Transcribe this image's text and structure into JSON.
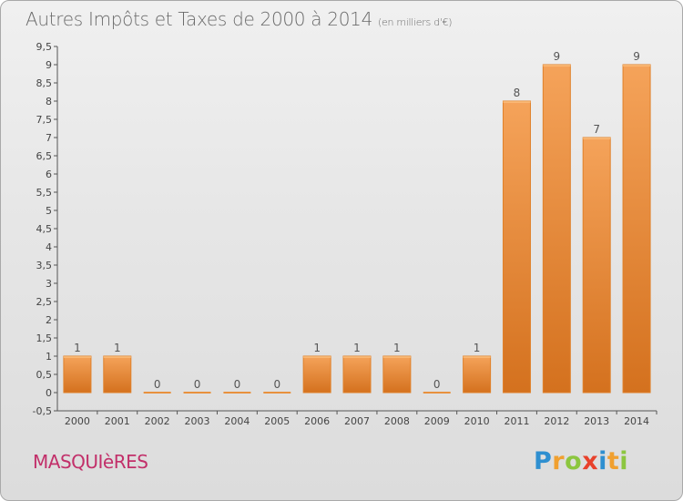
{
  "chart_data": {
    "type": "bar",
    "title": "Autres Impôts et Taxes de 2000 à 2014",
    "subtitle": "(en milliers d'€)",
    "categories": [
      "2000",
      "2001",
      "2002",
      "2003",
      "2004",
      "2005",
      "2006",
      "2007",
      "2008",
      "2009",
      "2010",
      "2011",
      "2012",
      "2013",
      "2014"
    ],
    "values": [
      1,
      1,
      0,
      0,
      0,
      0,
      1,
      1,
      1,
      0,
      1,
      8,
      9,
      7,
      9
    ],
    "data_labels": [
      "1",
      "1",
      "0",
      "0",
      "0",
      "0",
      "1",
      "1",
      "1",
      "0",
      "1",
      "8",
      "9",
      "7",
      "9"
    ],
    "ylim": [
      -0.5,
      9.5
    ],
    "yticks": [
      -0.5,
      0,
      0.5,
      1,
      1.5,
      2,
      2.5,
      3,
      3.5,
      4,
      4.5,
      5,
      5.5,
      6,
      6.5,
      7,
      7.5,
      8,
      8.5,
      9,
      9.5
    ],
    "ytick_labels": [
      "-0,5",
      "0",
      "0,5",
      "1",
      "1,5",
      "2",
      "2,5",
      "3",
      "3,5",
      "4",
      "4,5",
      "5",
      "5,5",
      "6",
      "6,5",
      "7",
      "7,5",
      "8",
      "8,5",
      "9",
      "9,5"
    ],
    "grid": false,
    "bar_color": "#f08a2b",
    "xlabel": "",
    "ylabel": ""
  },
  "commune_name": "MASQUIèRES",
  "logo": {
    "letters": [
      "P",
      "r",
      "o",
      "x",
      "i",
      "t",
      "i"
    ],
    "colors": [
      "#2e8fd0",
      "#f0a030",
      "#8cc63f",
      "#e8412b",
      "#2e8fd0",
      "#f0a030",
      "#8cc63f"
    ]
  }
}
